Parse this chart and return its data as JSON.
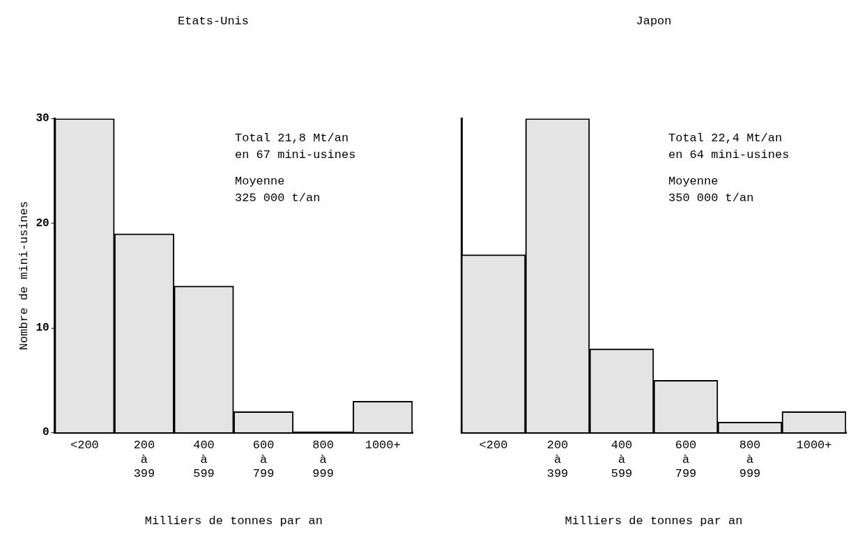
{
  "chart_data": [
    {
      "type": "bar",
      "title": "Etats-Unis",
      "xlabel": "Milliers de tonnes par an",
      "ylabel": "Nombre de mini-usines",
      "categories": [
        "<200",
        "200\nà\n399",
        "400\nà\n599",
        "600\nà\n799",
        "800\nà\n999",
        "1000+"
      ],
      "values": [
        30,
        19,
        14,
        2,
        0,
        3
      ],
      "color": "#e4e4e4",
      "ylim": [
        0,
        30
      ],
      "yticks": [
        0,
        10,
        20,
        30
      ],
      "legend": false,
      "annotations": [
        "Total 21,8 Mt/an\nen 67 mini-usines",
        "Moyenne\n325 000 t/an"
      ]
    },
    {
      "type": "bar",
      "title": "Japon",
      "xlabel": "Milliers de tonnes par an",
      "categories": [
        "<200",
        "200\nà\n399",
        "400\nà\n599",
        "600\nà\n799",
        "800\nà\n999",
        "1000+"
      ],
      "values": [
        17,
        30,
        8,
        5,
        1,
        2
      ],
      "color": "#e4e4e4",
      "ylim": [
        0,
        30
      ],
      "yticks": [
        0,
        10,
        20,
        30
      ],
      "tick_labels": "x",
      "legend": false,
      "annotations": [
        "Total 22,4 Mt/an\nen 64 mini-usines",
        "Moyenne\n350 000 t/an"
      ]
    }
  ]
}
